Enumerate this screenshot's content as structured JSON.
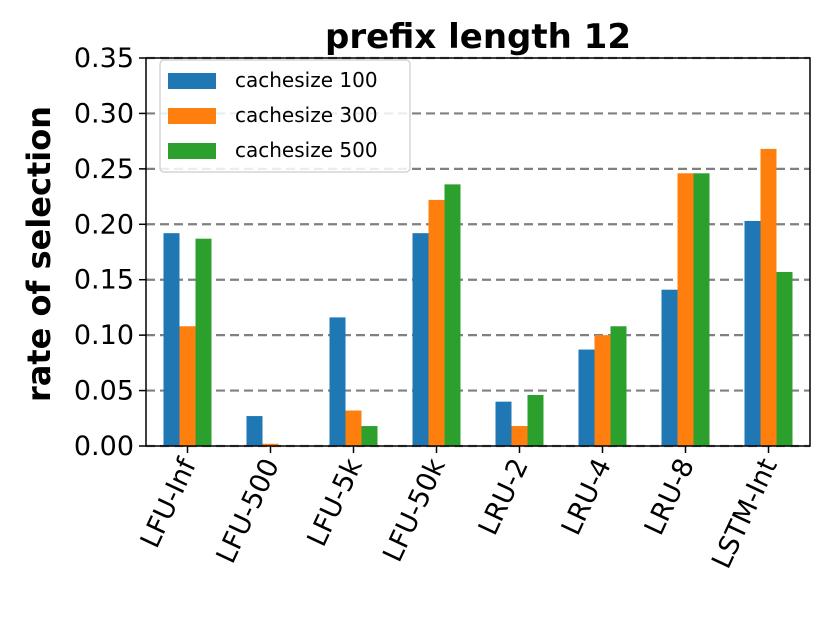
{
  "chart_data": {
    "type": "bar",
    "title": "prefix length 12",
    "xlabel": "",
    "ylabel": "rate of selection",
    "ylim": [
      0,
      0.35
    ],
    "yticks": [
      "0.00",
      "0.05",
      "0.10",
      "0.15",
      "0.20",
      "0.25",
      "0.30",
      "0.35"
    ],
    "grid": "horizontal dashed",
    "legend_position": "top-left",
    "categories": [
      "LFU-Inf",
      "LFU-500",
      "LFU-5k",
      "LFU-50k",
      "LRU-2",
      "LRU-4",
      "LRU-8",
      "LSTM-Int"
    ],
    "series": [
      {
        "name": "cachesize 100",
        "color": "#1f77b4",
        "values": [
          0.192,
          0.027,
          0.116,
          0.192,
          0.04,
          0.087,
          0.141,
          0.203
        ]
      },
      {
        "name": "cachesize 300",
        "color": "#ff7f0e",
        "values": [
          0.108,
          0.002,
          0.032,
          0.222,
          0.018,
          0.1,
          0.246,
          0.268
        ]
      },
      {
        "name": "cachesize 500",
        "color": "#2ca02c",
        "values": [
          0.187,
          0.0,
          0.018,
          0.236,
          0.046,
          0.108,
          0.246,
          0.157
        ]
      }
    ]
  }
}
